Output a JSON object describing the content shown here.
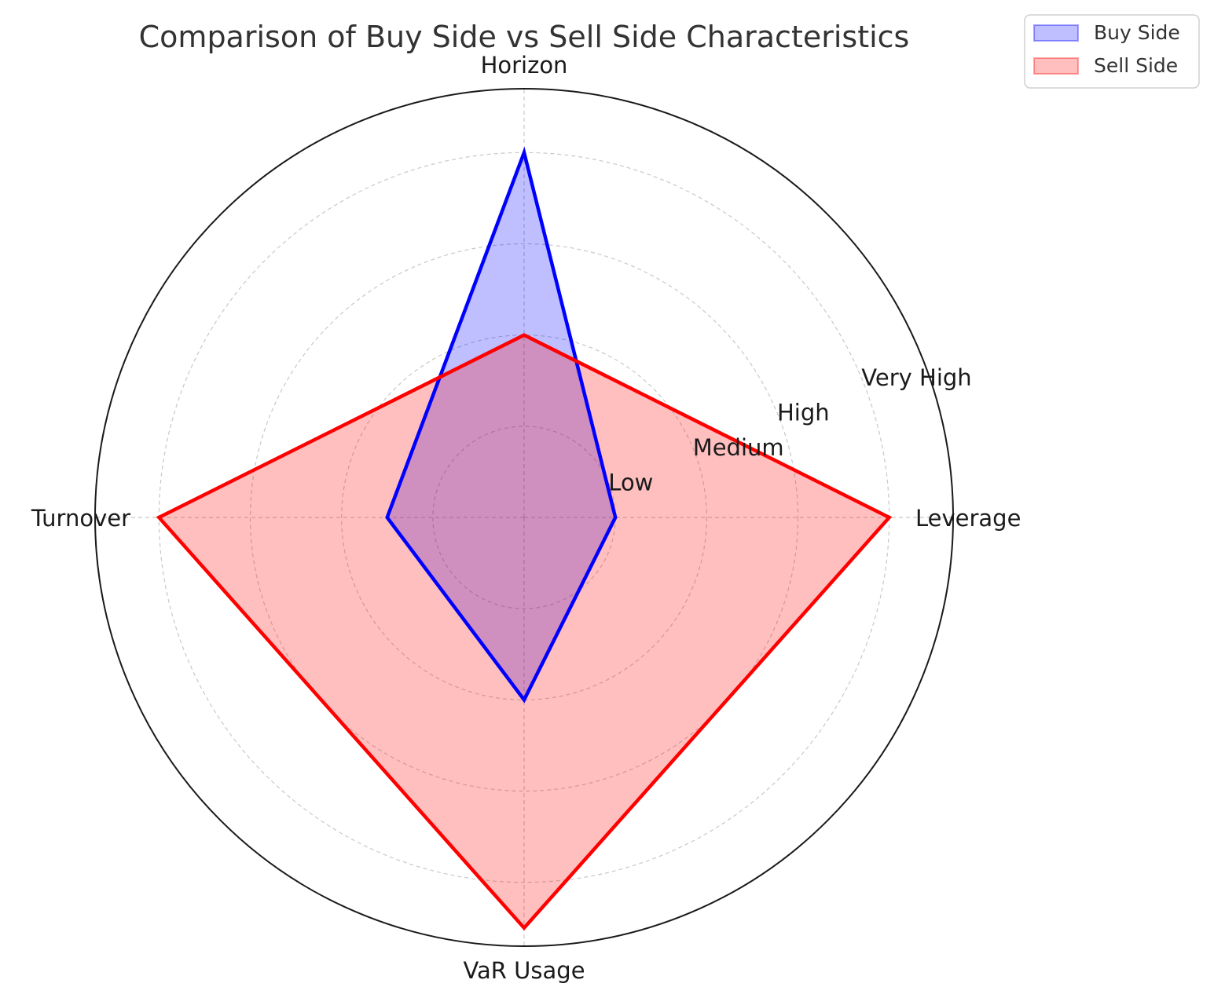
{
  "chart_data": {
    "type": "radar",
    "title": "Comparison of Buy Side vs Sell Side Characteristics",
    "axes": [
      "Leverage",
      "Horizon",
      "Turnover",
      "VaR Usage"
    ],
    "radial_ticks": [
      {
        "value": 1,
        "label": "Low"
      },
      {
        "value": 2,
        "label": "Medium"
      },
      {
        "value": 3,
        "label": "High"
      },
      {
        "value": 4,
        "label": "Very High"
      }
    ],
    "rlim": [
      0,
      4.7
    ],
    "grid": true,
    "legend_position": "top-right",
    "series": [
      {
        "name": "Buy Side",
        "values": [
          1,
          4,
          1.5,
          2
        ],
        "color": "#0000ff",
        "fill": "#0000ff"
      },
      {
        "name": "Sell Side",
        "values": [
          4,
          2,
          4,
          4.5
        ],
        "color": "#ff0000",
        "fill": "#ff0000"
      }
    ]
  }
}
